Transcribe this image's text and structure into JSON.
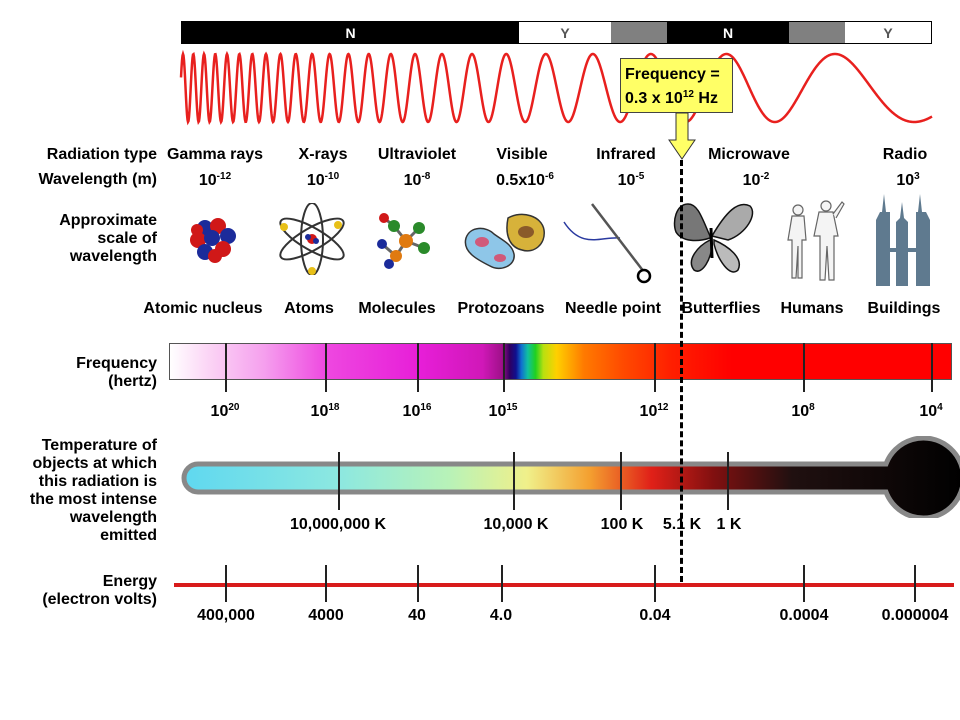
{
  "atmosphere_bar": [
    {
      "label": "N",
      "transparent": false
    },
    {
      "label": "Y",
      "transparent": true
    },
    {
      "label": "",
      "transparent": null
    },
    {
      "label": "N",
      "transparent": false
    },
    {
      "label": "",
      "transparent": null
    },
    {
      "label": "Y",
      "transparent": true
    }
  ],
  "callout": {
    "line1": "Frequency =",
    "line2_base": "0.3 x 10",
    "line2_exp": "12",
    "line2_unit": " Hz"
  },
  "rows": {
    "radiation_type_label": "Radiation type",
    "wavelength_label": "Wavelength (m)",
    "scale_label": [
      "Approximate",
      "scale of",
      "wavelength"
    ],
    "frequency_label": [
      "Frequency",
      "(hertz)"
    ],
    "temperature_label": [
      "Temperature of",
      "objects at which",
      "this radiation is",
      "the most intense",
      "wavelength",
      "emitted"
    ],
    "energy_label": [
      "Energy",
      "(electron volts)"
    ]
  },
  "radiation_types": [
    {
      "name": "Gamma rays",
      "wl_base": "10",
      "wl_exp": "-12"
    },
    {
      "name": "X-rays",
      "wl_base": "10",
      "wl_exp": "-10"
    },
    {
      "name": "Ultraviolet",
      "wl_base": "10",
      "wl_exp": "-8"
    },
    {
      "name": "Visible",
      "wl_base": "0.5x10",
      "wl_exp": "-6"
    },
    {
      "name": "Infrared",
      "wl_base": "10",
      "wl_exp": "-5"
    },
    {
      "name": "Microwave",
      "wl_base": "10",
      "wl_exp": "-2"
    },
    {
      "name": "Radio",
      "wl_base": "10",
      "wl_exp": "3"
    }
  ],
  "scale_objects": [
    "Atomic nucleus",
    "Atoms",
    "Molecules",
    "Protozoans",
    "Needle point",
    "Butterflies",
    "Humans",
    "Buildings"
  ],
  "frequency_ticks": [
    {
      "base": "10",
      "exp": "20"
    },
    {
      "base": "10",
      "exp": "18"
    },
    {
      "base": "10",
      "exp": "16"
    },
    {
      "base": "10",
      "exp": "15"
    },
    {
      "base": "10",
      "exp": "12"
    },
    {
      "base": "10",
      "exp": "8"
    },
    {
      "base": "10",
      "exp": "4"
    }
  ],
  "temperature_ticks": [
    "10,000,000 K",
    "10,000 K",
    "100 K",
    "5.1 K",
    "1 K"
  ],
  "energy_ticks": [
    "400,000",
    "4000",
    "40",
    "4.0",
    "0.04",
    "0.0004",
    "0.000004"
  ],
  "colors": {
    "wave": "#e8201e",
    "energy_line": "#d81b1b",
    "callout_bg": "#ffff66",
    "arrow": "#ffff66"
  },
  "icons": [
    "atomic-nucleus-icon",
    "atom-icon",
    "molecule-icon",
    "protozoa-icon",
    "needle-icon",
    "butterfly-icon",
    "humans-icon",
    "buildings-icon"
  ]
}
